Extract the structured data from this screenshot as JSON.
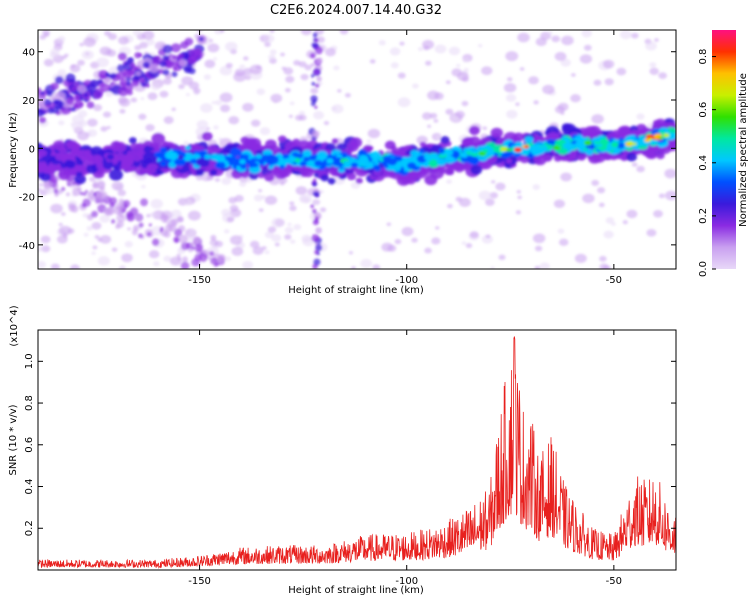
{
  "title": "C2E6.2024.007.14.40.G32",
  "chart_data": [
    {
      "type": "heatmap",
      "xlabel": "Height of straight line (km)",
      "ylabel": "Frequency (Hz)",
      "xlim": [
        -189,
        -35
      ],
      "ylim": [
        -50,
        49
      ],
      "x_ticks": [
        -150,
        -100,
        -50
      ],
      "y_ticks": [
        -40,
        -20,
        0,
        20,
        40
      ],
      "colorbar": {
        "label": "Normalized spectral amplitude",
        "range": [
          0,
          0.9
        ],
        "ticks": [
          0.0,
          0.2,
          0.4,
          0.6,
          0.8
        ],
        "colormap": [
          "#e8d8f8",
          "#c9a0f0",
          "#8a2be2",
          "#3a1adc",
          "#0050ff",
          "#00c8ff",
          "#00e8a0",
          "#30e000",
          "#c8f000",
          "#ffc000",
          "#ff3000",
          "#ff1080"
        ]
      },
      "ridge_track": {
        "x": [
          -189,
          -180,
          -170,
          -160,
          -150,
          -140,
          -130,
          -120,
          -110,
          -100,
          -90,
          -80,
          -70,
          -60,
          -50,
          -40,
          -37
        ],
        "y": [
          -5,
          -5,
          -4,
          -4,
          -4,
          -5,
          -5,
          -5,
          -5,
          -6,
          -3,
          -1,
          0,
          2,
          1,
          4,
          5
        ]
      }
    },
    {
      "type": "line",
      "xlabel": "Height of straight line (km)",
      "ylabel": "SNR (10 * v/v)",
      "y_scale_label": "(x10^4)",
      "xlim": [
        -189,
        -35
      ],
      "ylim": [
        0,
        1.15
      ],
      "x_ticks": [
        -150,
        -100,
        -50
      ],
      "y_ticks": [
        0.2,
        0.4,
        0.6,
        0.8,
        1.0
      ],
      "series": [
        {
          "color": "#e8201e",
          "envelope_x": [
            -189,
            -170,
            -160,
            -150,
            -140,
            -130,
            -120,
            -110,
            -100,
            -95,
            -90,
            -85,
            -80,
            -78,
            -76,
            -74,
            -72,
            -70,
            -68,
            -65,
            -62,
            -60,
            -55,
            -50,
            -45,
            -42,
            -40,
            -37,
            -35
          ],
          "envelope_y": [
            0.05,
            0.05,
            0.05,
            0.07,
            0.11,
            0.12,
            0.12,
            0.17,
            0.18,
            0.2,
            0.24,
            0.3,
            0.4,
            0.7,
            0.95,
            1.12,
            0.8,
            0.75,
            0.55,
            0.65,
            0.42,
            0.35,
            0.2,
            0.17,
            0.46,
            0.43,
            0.48,
            0.33,
            0.28
          ]
        }
      ]
    }
  ]
}
